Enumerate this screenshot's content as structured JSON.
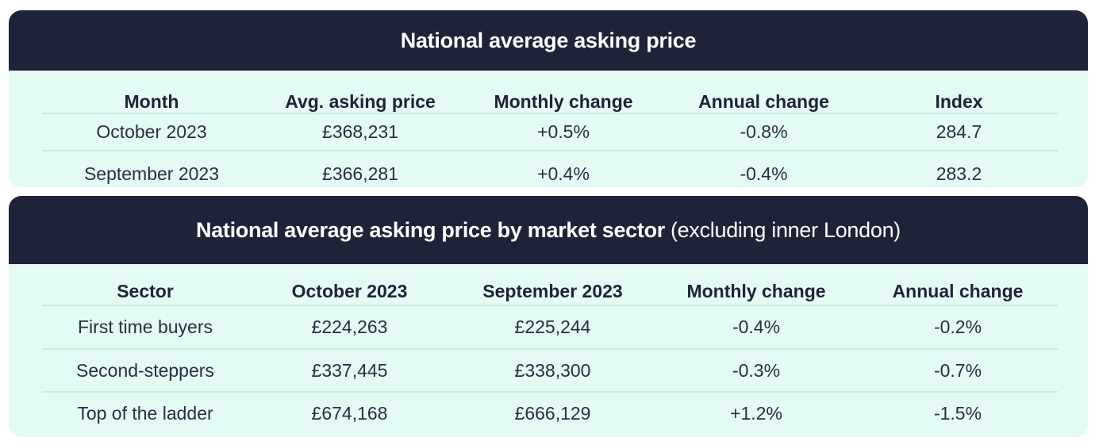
{
  "table1": {
    "title": "National average asking price",
    "headers": [
      "Month",
      "Avg. asking price",
      "Monthly change",
      "Annual change",
      "Index"
    ],
    "rows": [
      [
        "October 2023",
        "£368,231",
        "+0.5%",
        "-0.8%",
        "284.7"
      ],
      [
        "September 2023",
        "£366,281",
        "+0.4%",
        "-0.4%",
        "283.2"
      ]
    ]
  },
  "table2": {
    "title": "National average asking price by market sector",
    "subtitle": "(excluding inner London)",
    "headers": [
      "Sector",
      "October 2023",
      "September 2023",
      "Monthly change",
      "Annual change"
    ],
    "rows": [
      [
        "First time buyers",
        "£224,263",
        "£225,244",
        "-0.4%",
        "-0.2%"
      ],
      [
        "Second-steppers",
        "£337,445",
        "£338,300",
        "-0.3%",
        "-0.7%"
      ],
      [
        "Top of the ladder",
        "£674,168",
        "£666,129",
        "+1.2%",
        "-1.5%"
      ]
    ]
  },
  "colors": {
    "banner": "#1e2338",
    "panel_background": "#e4faf4",
    "divider": "#c9ece2"
  }
}
